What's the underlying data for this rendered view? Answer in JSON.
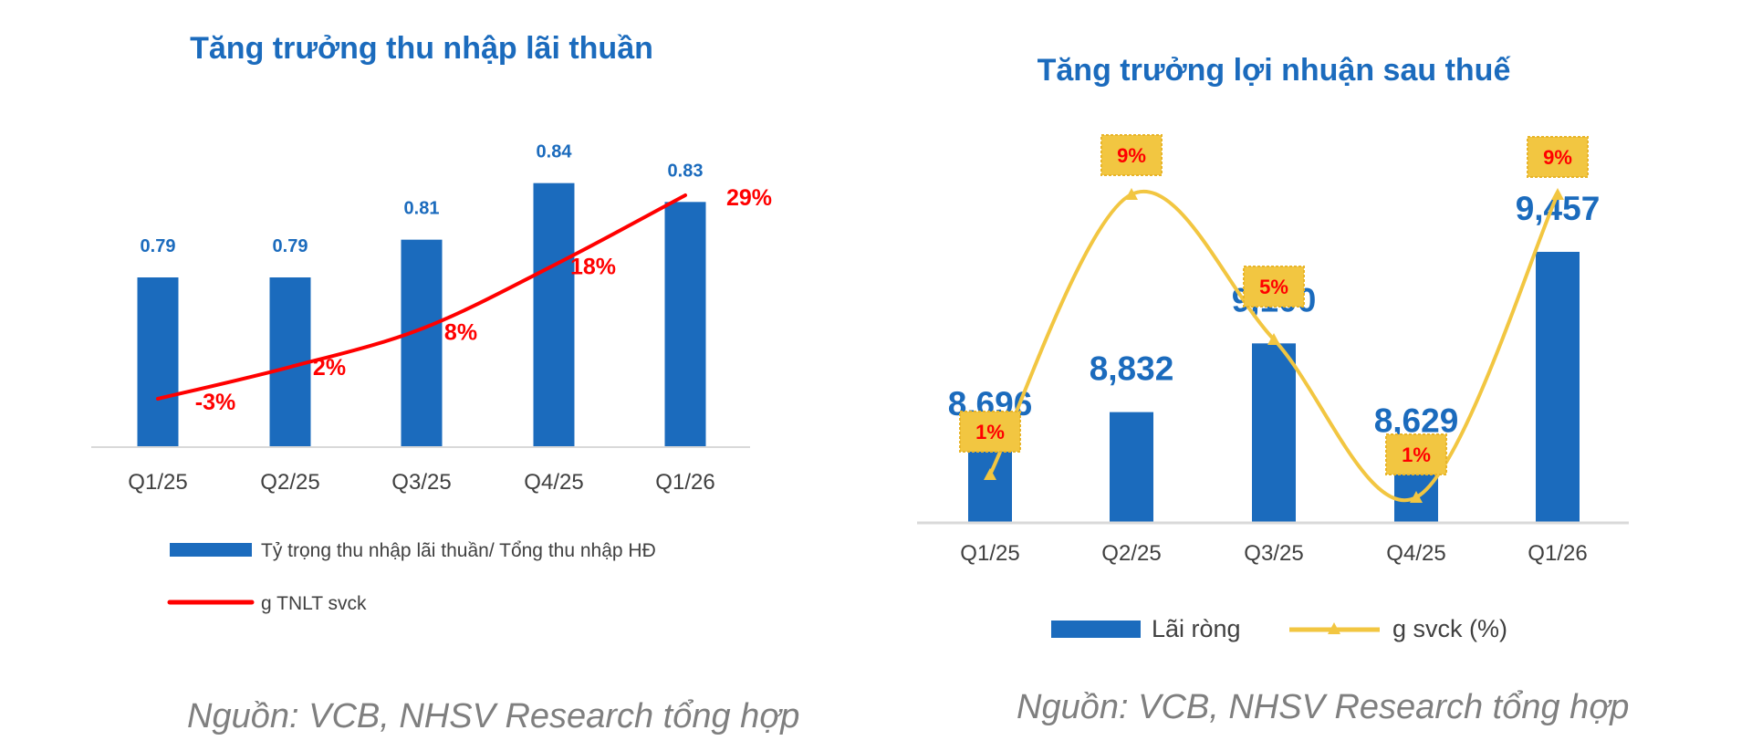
{
  "colors": {
    "bar": "#1b6bbd",
    "title": "#1b6bbd",
    "value_label": "#1b6bbd",
    "growth_left": "#ff0000",
    "growth_right": "#f2c641",
    "pct_box": "#f2c641",
    "pct_text": "#ff0000",
    "axis": "#d9d9d9",
    "source": "#7f7f7f"
  },
  "chart_data": [
    {
      "type": "bar",
      "title": "Tăng trưởng thu nhập lãi thuần",
      "categories": [
        "Q1/25",
        "Q2/25",
        "Q3/25",
        "Q4/25",
        "Q1/26"
      ],
      "series": [
        {
          "name": "Tỷ trọng thu nhập lãi thuần/ Tổng thu nhập HĐ",
          "type": "bar",
          "values": [
            0.79,
            0.79,
            0.81,
            0.84,
            0.83
          ],
          "labels": [
            "0.79",
            "0.79",
            "0.81",
            "0.84",
            "0.83"
          ]
        },
        {
          "name": "g TNLT svck",
          "type": "line",
          "values": [
            -3,
            2,
            8,
            18,
            29
          ],
          "labels": [
            "-3%",
            "2%",
            "8%",
            "18%",
            "29%"
          ]
        }
      ],
      "legend": "bottom",
      "grid": false
    },
    {
      "type": "bar",
      "title": "Tăng trưởng lợi nhuận sau thuế",
      "categories": [
        "Q1/25",
        "Q2/25",
        "Q3/25",
        "Q4/25",
        "Q1/26"
      ],
      "series": [
        {
          "name": "Lãi ròng",
          "type": "bar",
          "values": [
            8696,
            8832,
            9100,
            8629,
            9457
          ],
          "labels": [
            "8,696",
            "8,832",
            "9,100",
            "8,629",
            "9,457"
          ]
        },
        {
          "name": "g svck (%)",
          "type": "line",
          "values": [
            1,
            9,
            5,
            1,
            9
          ],
          "labels": [
            "1%",
            "9%",
            "5%",
            "1%",
            "9%"
          ]
        }
      ],
      "legend": "bottom",
      "grid": false
    }
  ],
  "source_left": "Nguồn: VCB, NHSV Research tổng hợp",
  "source_right": "Nguồn: VCB, NHSV Research tổng hợp"
}
